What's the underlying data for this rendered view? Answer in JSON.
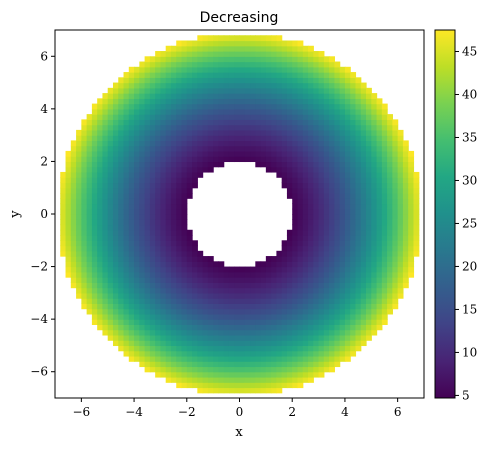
{
  "chart_data": {
    "type": "heatmap",
    "title": "Decreasing",
    "xlabel": "x",
    "ylabel": "y",
    "xlim": [
      -7,
      7
    ],
    "ylim": [
      -7,
      7
    ],
    "xticks": [
      -6,
      -4,
      -2,
      0,
      2,
      4,
      6
    ],
    "yticks": [
      -6,
      -4,
      -2,
      0,
      2,
      4,
      6
    ],
    "xtick_labels": [
      "−6",
      "−4",
      "−2",
      "0",
      "2",
      "4",
      "6"
    ],
    "ytick_labels": [
      "−6",
      "−4",
      "−2",
      "0",
      "2",
      "4",
      "6"
    ],
    "grid": false,
    "colormap": "viridis",
    "colorbar": {
      "range": [
        4.7,
        47.5
      ],
      "ticks": [
        5,
        10,
        15,
        20,
        25,
        30,
        35,
        40,
        45
      ],
      "tick_labels": [
        "5",
        "10",
        "15",
        "20",
        "25",
        "30",
        "35",
        "40",
        "45"
      ]
    },
    "field": {
      "shape": "annulus",
      "inner_radius": 2.0,
      "outer_radius": 6.9,
      "value_at_inner_radius": 4.7,
      "value_at_outer_radius": 47.5,
      "value_function": "r^2"
    }
  }
}
